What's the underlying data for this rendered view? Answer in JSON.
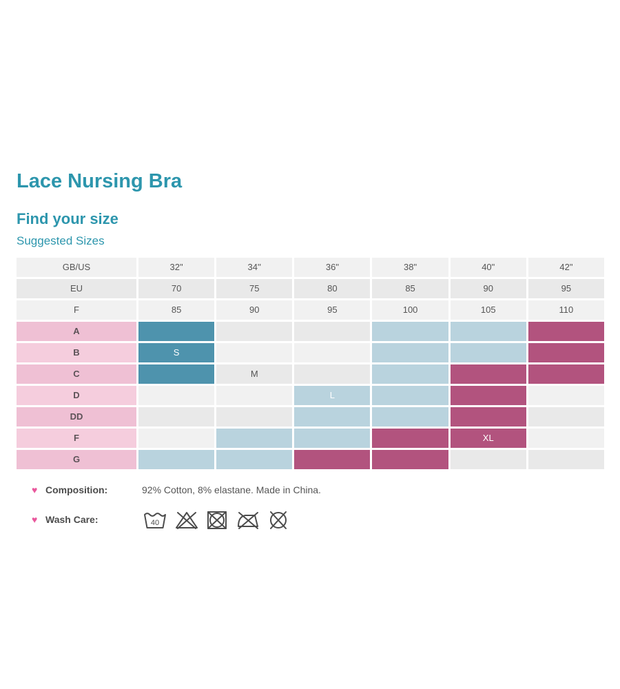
{
  "page": {
    "title": "Lace Nursing Bra",
    "section_heading": "Find your size",
    "subsection_heading": "Suggested Sizes"
  },
  "table": {
    "header_rows": [
      {
        "label": "GB/US",
        "values": [
          "32\"",
          "34''",
          "36\"",
          "38\"",
          "40\"",
          "42\""
        ]
      },
      {
        "label": "EU",
        "values": [
          "70",
          "75",
          "80",
          "85",
          "90",
          "95"
        ]
      },
      {
        "label": "F",
        "values": [
          "85",
          "90",
          "95",
          "100",
          "105",
          "110"
        ]
      }
    ],
    "body_rows": [
      {
        "label": "A",
        "cells": [
          {
            "c": "teal",
            "t": ""
          },
          {
            "c": "empty",
            "t": ""
          },
          {
            "c": "empty",
            "t": ""
          },
          {
            "c": "blue",
            "t": ""
          },
          {
            "c": "blue",
            "t": ""
          },
          {
            "c": "magenta",
            "t": ""
          }
        ]
      },
      {
        "label": "B",
        "cells": [
          {
            "c": "teal",
            "t": "S"
          },
          {
            "c": "empty",
            "t": ""
          },
          {
            "c": "empty",
            "t": ""
          },
          {
            "c": "blue",
            "t": ""
          },
          {
            "c": "blue",
            "t": ""
          },
          {
            "c": "magenta",
            "t": ""
          }
        ]
      },
      {
        "label": "C",
        "cells": [
          {
            "c": "teal",
            "t": ""
          },
          {
            "c": "empty",
            "t": "M"
          },
          {
            "c": "empty",
            "t": ""
          },
          {
            "c": "blue",
            "t": ""
          },
          {
            "c": "magenta",
            "t": ""
          },
          {
            "c": "magenta",
            "t": ""
          }
        ]
      },
      {
        "label": "D",
        "cells": [
          {
            "c": "empty",
            "t": ""
          },
          {
            "c": "empty",
            "t": ""
          },
          {
            "c": "blue",
            "t": "L"
          },
          {
            "c": "blue",
            "t": ""
          },
          {
            "c": "magenta",
            "t": ""
          },
          {
            "c": "empty",
            "t": ""
          }
        ]
      },
      {
        "label": "DD",
        "cells": [
          {
            "c": "empty",
            "t": ""
          },
          {
            "c": "empty",
            "t": ""
          },
          {
            "c": "blue",
            "t": ""
          },
          {
            "c": "blue",
            "t": ""
          },
          {
            "c": "magenta",
            "t": ""
          },
          {
            "c": "empty",
            "t": ""
          }
        ]
      },
      {
        "label": "F",
        "cells": [
          {
            "c": "empty",
            "t": ""
          },
          {
            "c": "blue",
            "t": ""
          },
          {
            "c": "blue",
            "t": ""
          },
          {
            "c": "magenta",
            "t": ""
          },
          {
            "c": "magenta",
            "t": "XL"
          },
          {
            "c": "empty",
            "t": ""
          }
        ]
      },
      {
        "label": "G",
        "cells": [
          {
            "c": "blue",
            "t": ""
          },
          {
            "c": "blue",
            "t": ""
          },
          {
            "c": "magenta",
            "t": ""
          },
          {
            "c": "magenta",
            "t": ""
          },
          {
            "c": "empty",
            "t": ""
          },
          {
            "c": "empty",
            "t": ""
          }
        ]
      }
    ]
  },
  "details": {
    "composition_label": "Composition:",
    "composition_value": "92% Cotton, 8% elastane. Made in China.",
    "washcare_label": "Wash Care:",
    "wash_icons": [
      "wash-40-icon",
      "do-not-bleach-icon",
      "do-not-tumble-dry-icon",
      "do-not-iron-icon",
      "do-not-dry-clean-icon"
    ]
  },
  "colors": {
    "heading_teal": "#2d96ad",
    "cell_teal": "#4e93ad",
    "cell_blue": "#b9d3de",
    "cell_magenta": "#b2537e",
    "pink_light": "#f5cddd",
    "pink_dark": "#efc0d4",
    "row_light": "#f1f1f1",
    "row_dark": "#e9e9e9",
    "text_dark": "#555555",
    "label_text": "#5c5257",
    "cell_text_light": "#ffffff",
    "heart_pink": "#e9579c",
    "icon_gray": "#4c4c4c"
  }
}
